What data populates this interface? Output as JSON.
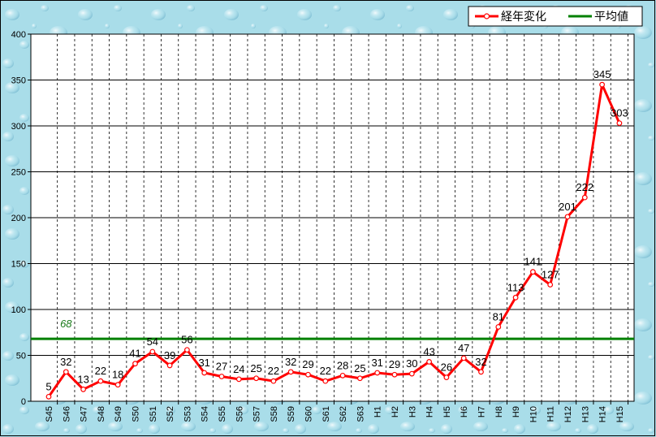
{
  "chart_data": {
    "type": "line",
    "categories": [
      "S45",
      "S46",
      "S47",
      "S48",
      "S49",
      "S50",
      "S51",
      "S52",
      "S53",
      "S54",
      "S55",
      "S56",
      "S57",
      "S58",
      "S59",
      "S60",
      "S61",
      "S62",
      "S63",
      "H1",
      "H2",
      "H3",
      "H4",
      "H5",
      "H6",
      "H7",
      "H8",
      "H9",
      "H10",
      "H11",
      "H12",
      "H13",
      "H14",
      "H15"
    ],
    "series": [
      {
        "name": "経年変化",
        "color": "#ff0000",
        "values": [
          5,
          32,
          13,
          22,
          18,
          41,
          54,
          39,
          56,
          31,
          27,
          24,
          25,
          22,
          32,
          29,
          22,
          28,
          25,
          31,
          29,
          30,
          43,
          26,
          47,
          32,
          81,
          113,
          141,
          127,
          201,
          222,
          345,
          303
        ]
      },
      {
        "name": "平均値",
        "color": "#008000",
        "value": 68
      }
    ],
    "average_label": "68",
    "ylim": [
      0,
      400
    ],
    "yticks": [
      0,
      50,
      100,
      150,
      200,
      250,
      300,
      350,
      400
    ],
    "grid": true,
    "legend_position": "top-right",
    "background_color": "#a8dcea",
    "plot_background_color": "#ffffff"
  }
}
